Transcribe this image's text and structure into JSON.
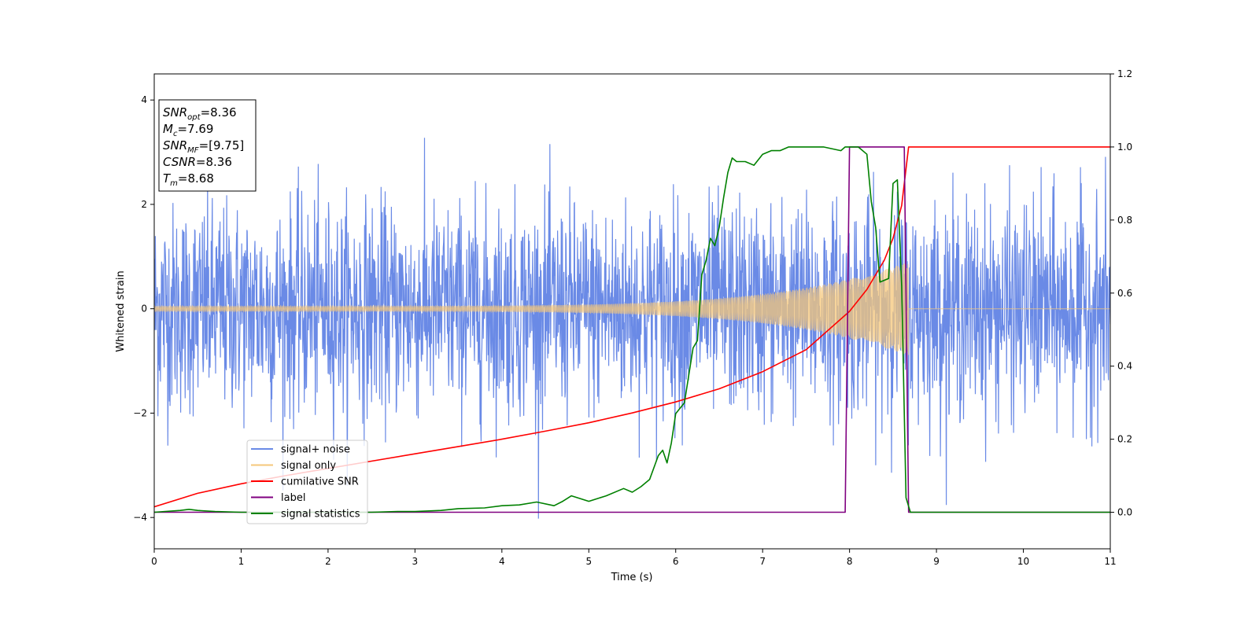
{
  "chart_data": {
    "type": "line",
    "xlabel": "Time (s)",
    "ylabel": "Whitened strain",
    "xlim": [
      0,
      11
    ],
    "ylim_left": [
      -4.6,
      4.5
    ],
    "ylim_right": [
      -0.1,
      1.2
    ],
    "x_ticks": [
      0,
      1,
      2,
      3,
      4,
      5,
      6,
      7,
      8,
      9,
      10,
      11
    ],
    "y_ticks_left": [
      -4,
      -2,
      0,
      2,
      4
    ],
    "y_ticks_right": [
      "0.0",
      "0.2",
      "0.4",
      "0.6",
      "0.8",
      "1.0",
      "1.2"
    ],
    "grid": false,
    "legend_position": "lower-left",
    "legend": [
      {
        "label": "signal+ noise",
        "color": "#6a8ae6"
      },
      {
        "label": "signal only",
        "color": "#f5c77a"
      },
      {
        "label": "cumilative SNR",
        "color": "#ff0000"
      },
      {
        "label": "label",
        "color": "#800080"
      },
      {
        "label": "signal statistics",
        "color": "#008000"
      }
    ],
    "annotation_box": {
      "lines": [
        {
          "symbol": "SNR",
          "sub": "opt",
          "value": "=8.36"
        },
        {
          "symbol": "M",
          "sub": "c",
          "value": "=7.69"
        },
        {
          "symbol": "SNR",
          "sub": "MF",
          "value": "=[9.75]"
        },
        {
          "symbol": "CSNR",
          "sub": "",
          "value": "=8.36"
        },
        {
          "symbol": "T",
          "sub": "m",
          "value": "=8.68"
        }
      ]
    },
    "series": [
      {
        "name": "signal+ noise",
        "axis": "left",
        "color": "#6a8ae6",
        "description_range": [
          -4.2,
          4.1
        ],
        "noise_std": 1.0,
        "x_range": [
          0,
          11
        ]
      },
      {
        "name": "signal only",
        "axis": "left",
        "color": "#f5c77a",
        "x_range": [
          0,
          8.68
        ],
        "amplitude_start": 0.05,
        "amplitude_end": 0.9
      },
      {
        "name": "cumilative SNR",
        "axis": "right",
        "color": "#ff0000",
        "x": [
          0,
          0.5,
          1,
          1.5,
          2,
          2.5,
          3,
          3.5,
          4,
          4.5,
          5,
          5.5,
          6,
          6.5,
          7,
          7.5,
          8,
          8.2,
          8.4,
          8.5,
          8.6,
          8.68,
          9,
          10,
          11
        ],
        "y": [
          0.015,
          0.052,
          0.078,
          0.1,
          0.12,
          0.14,
          0.16,
          0.18,
          0.2,
          0.222,
          0.245,
          0.272,
          0.302,
          0.338,
          0.385,
          0.445,
          0.55,
          0.61,
          0.69,
          0.75,
          0.84,
          1.0,
          1.0,
          1.0,
          1.0
        ]
      },
      {
        "name": "label",
        "axis": "right",
        "color": "#800080",
        "x": [
          0,
          7.95,
          8.0,
          8.63,
          8.68,
          11
        ],
        "y": [
          0,
          0,
          1.0,
          1.0,
          0,
          0
        ]
      },
      {
        "name": "signal statistics",
        "axis": "right",
        "color": "#008000",
        "x": [
          0,
          0.3,
          0.4,
          0.5,
          0.7,
          1,
          2,
          2.5,
          2.8,
          3,
          3.3,
          3.5,
          3.8,
          4,
          4.2,
          4.4,
          4.6,
          4.7,
          4.8,
          5.0,
          5.2,
          5.4,
          5.5,
          5.6,
          5.7,
          5.8,
          5.85,
          5.9,
          5.95,
          6.0,
          6.1,
          6.2,
          6.25,
          6.3,
          6.35,
          6.4,
          6.45,
          6.5,
          6.55,
          6.6,
          6.65,
          6.7,
          6.8,
          6.9,
          7.0,
          7.1,
          7.2,
          7.3,
          7.5,
          7.7,
          7.9,
          7.95,
          8.0,
          8.1,
          8.2,
          8.25,
          8.3,
          8.35,
          8.45,
          8.5,
          8.55,
          8.6,
          8.65,
          8.7,
          8.8,
          9,
          10,
          11
        ],
        "y": [
          0,
          0.005,
          0.008,
          0.005,
          0.002,
          0,
          0,
          0,
          0.002,
          0.002,
          0.005,
          0.01,
          0.012,
          0.018,
          0.02,
          0.028,
          0.018,
          0.03,
          0.045,
          0.03,
          0.045,
          0.065,
          0.055,
          0.07,
          0.09,
          0.155,
          0.17,
          0.135,
          0.19,
          0.27,
          0.3,
          0.45,
          0.47,
          0.65,
          0.69,
          0.75,
          0.73,
          0.78,
          0.86,
          0.93,
          0.97,
          0.96,
          0.96,
          0.95,
          0.98,
          0.99,
          0.99,
          1.0,
          1.0,
          1.0,
          0.99,
          1.0,
          1.0,
          1.0,
          0.98,
          0.85,
          0.78,
          0.63,
          0.64,
          0.9,
          0.91,
          0.62,
          0.04,
          0.0,
          0.0,
          0.0,
          0.0,
          0.0
        ]
      }
    ]
  }
}
